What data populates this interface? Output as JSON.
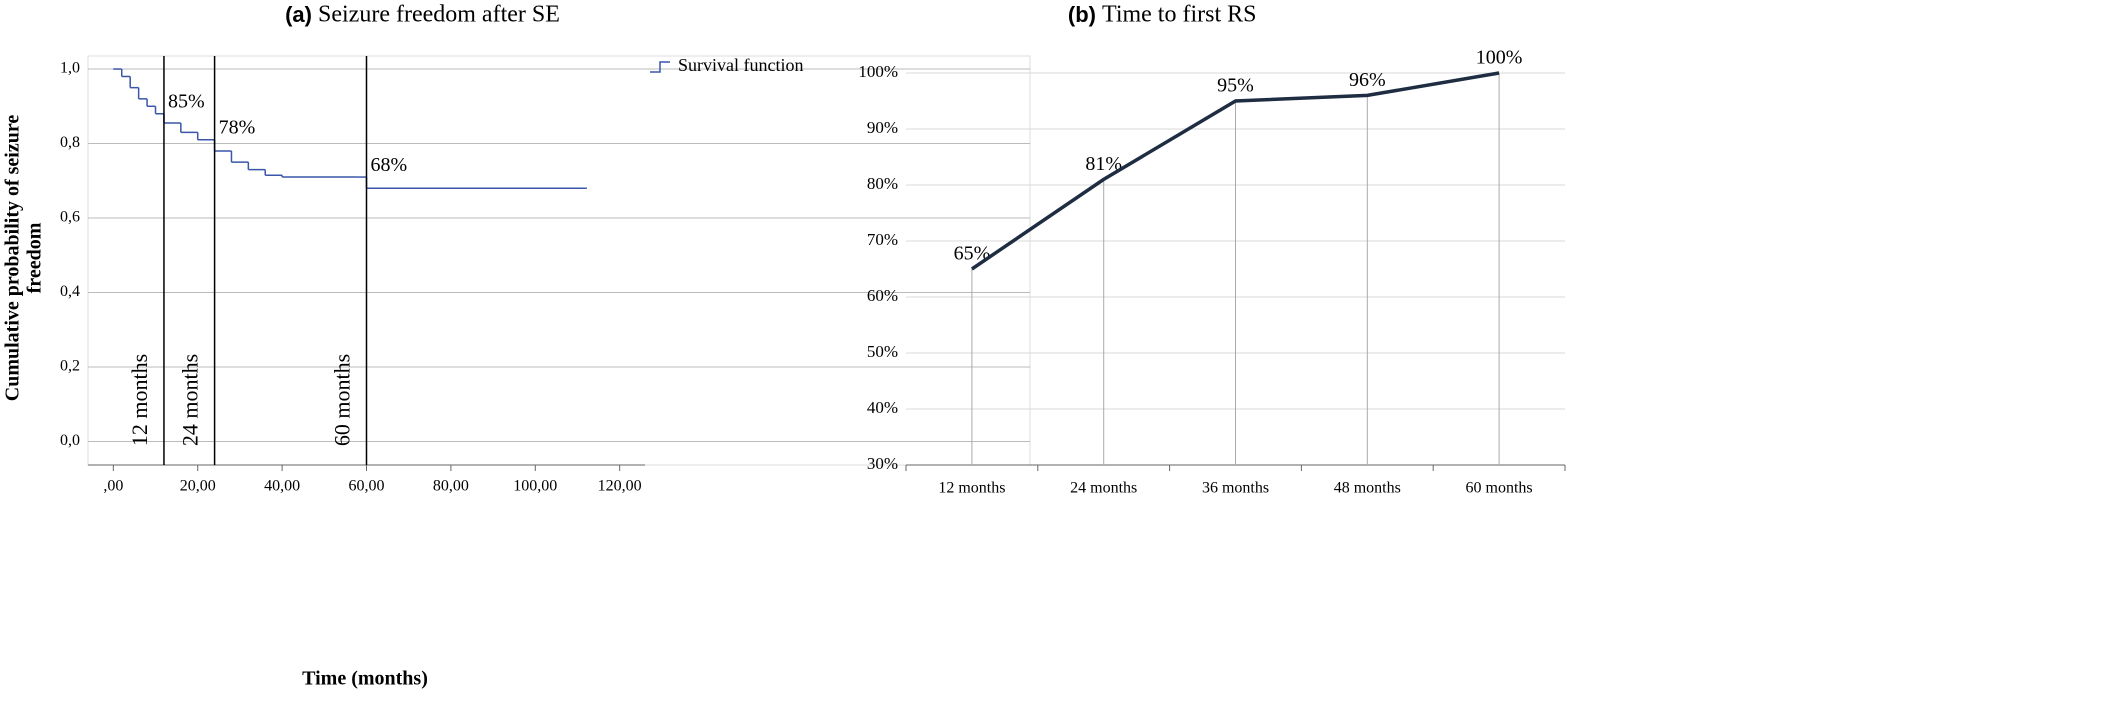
{
  "chart_data": [
    {
      "type": "step",
      "title_label": "(a)",
      "title": "Seizure freedom after SE",
      "xlabel": "Time (months)",
      "ylabel": [
        "Cumulative probability of seizure",
        "freedom"
      ],
      "x": [
        0,
        2,
        4,
        6,
        8,
        10,
        12,
        16,
        20,
        24,
        28,
        32,
        36,
        40,
        58,
        60,
        112
      ],
      "series": [
        {
          "name": "Survival function",
          "color": "#3a56a8",
          "values": [
            1.0,
            0.98,
            0.95,
            0.92,
            0.9,
            0.88,
            0.855,
            0.83,
            0.81,
            0.78,
            0.75,
            0.73,
            0.715,
            0.71,
            0.71,
            0.68,
            0.68
          ]
        }
      ],
      "xlim": [
        -6,
        126
      ],
      "xticks": [
        {
          "value": 0,
          "label": ",00"
        },
        {
          "value": 20,
          "label": "20,00"
        },
        {
          "value": 40,
          "label": "40,00"
        },
        {
          "value": 60,
          "label": "60,00"
        },
        {
          "value": 80,
          "label": "80,00"
        },
        {
          "value": 100,
          "label": "100,00"
        },
        {
          "value": 120,
          "label": "120,00"
        }
      ],
      "ylim": [
        -0.063,
        1.035
      ],
      "yticks": [
        {
          "value": 0,
          "label": "0,0"
        },
        {
          "value": 0.2,
          "label": "0,2"
        },
        {
          "value": 0.4,
          "label": "0,4"
        },
        {
          "value": 0.6,
          "label": "0,6"
        },
        {
          "value": 0.8,
          "label": "0,8"
        },
        {
          "value": 1,
          "label": "1,0"
        }
      ],
      "grid": true,
      "legend": "upper right",
      "reference_lines": [
        {
          "x": 12,
          "label": "12 months",
          "survival": 0.85,
          "value_label": "85%"
        },
        {
          "x": 24,
          "label": "24 months",
          "survival": 0.78,
          "value_label": "78%"
        },
        {
          "x": 60,
          "label": "60 months",
          "survival": 0.68,
          "value_label": "68%"
        }
      ]
    },
    {
      "type": "line",
      "title_label": "(b)",
      "title": "Time to first RS",
      "categories": [
        "12 months",
        "24 months",
        "36 months",
        "48 months",
        "60 months"
      ],
      "values": [
        65,
        81,
        95,
        96,
        100
      ],
      "value_labels": [
        "65%",
        "81%",
        "95%",
        "96%",
        "100%"
      ],
      "color": "#1f2d42",
      "ylim": [
        30,
        100
      ],
      "yticks": [
        {
          "value": 30,
          "label": "30%"
        },
        {
          "value": 40,
          "label": "40%"
        },
        {
          "value": 50,
          "label": "50%"
        },
        {
          "value": 60,
          "label": "60%"
        },
        {
          "value": 70,
          "label": "70%"
        },
        {
          "value": 80,
          "label": "80%"
        },
        {
          "value": 90,
          "label": "90%"
        },
        {
          "value": 100,
          "label": "100%"
        }
      ],
      "grid": true
    }
  ]
}
